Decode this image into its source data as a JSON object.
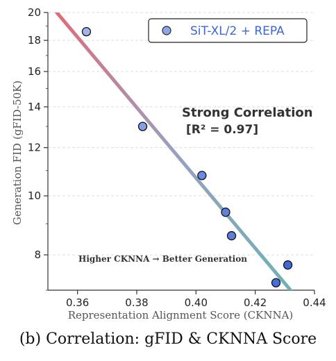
{
  "chart_data": {
    "type": "scatter",
    "xlabel": "Representation Alignment Score (CKNNA)",
    "ylabel": "Generation FID (gFID-50K)",
    "xlim": [
      0.35,
      0.44
    ],
    "ylim": [
      7.0,
      20.0
    ],
    "y_scale": "log",
    "x_ticks": [
      "0.36",
      "0.38",
      "0.40",
      "0.42",
      "0.44"
    ],
    "y_ticks": [
      "8",
      "10",
      "12",
      "14",
      "16",
      "18",
      "20"
    ],
    "grid": "horizontal dashed",
    "legend_position": "top-right",
    "series": [
      {
        "name": "SiT-XL/2 + REPA",
        "color": "#4a6fdc",
        "points": [
          {
            "x": 0.363,
            "y": 18.6
          },
          {
            "x": 0.382,
            "y": 13.0
          },
          {
            "x": 0.402,
            "y": 10.8
          },
          {
            "x": 0.41,
            "y": 9.4
          },
          {
            "x": 0.412,
            "y": 8.6
          },
          {
            "x": 0.427,
            "y": 7.2
          },
          {
            "x": 0.431,
            "y": 7.7
          }
        ]
      }
    ],
    "fit_line": {
      "x": [
        0.353,
        0.433
      ],
      "y": [
        20.0,
        6.9
      ],
      "gradient_colors": [
        "#e06c78",
        "#9aa0c0",
        "#6cb3b3"
      ]
    },
    "annotations": {
      "correlation": "Strong Correlation",
      "r2": "[R² = 0.97]",
      "trend": "Higher CKNNA → Better Generation"
    },
    "caption": "(b) Correlation: gFID & CKNNA Score"
  }
}
